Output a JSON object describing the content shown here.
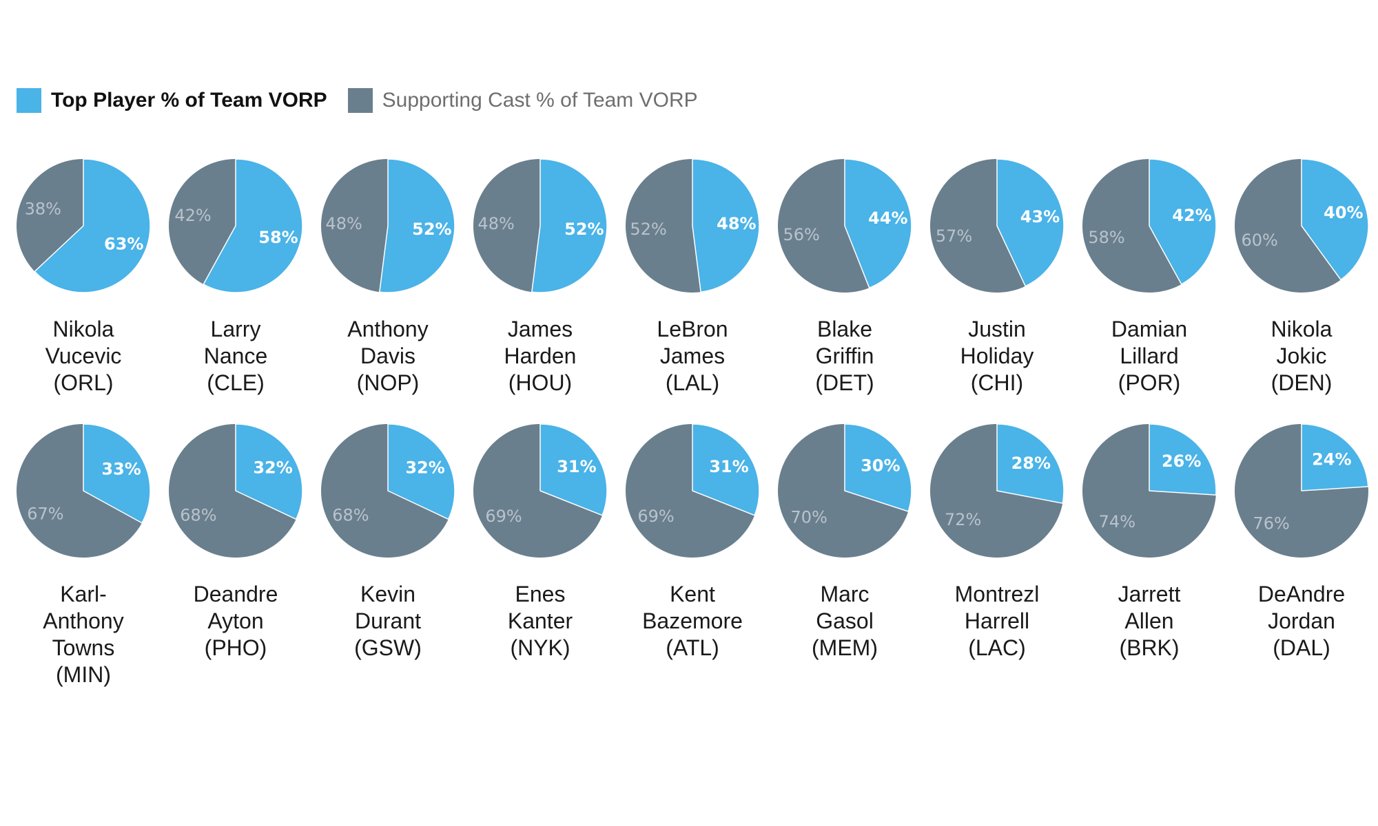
{
  "colors": {
    "top_player": "#4AB3E8",
    "supporting": "#6A7F8D",
    "divider": "#ffffff"
  },
  "legend": [
    {
      "label": "Top Player % of Team VORP",
      "color": "#4AB3E8",
      "style": "bold"
    },
    {
      "label": "Supporting Cast % of Team VORP",
      "color": "#6A7F8D",
      "style": "muted"
    }
  ],
  "chart_data": {
    "type": "pie",
    "series_names": [
      "Top Player % of Team VORP",
      "Supporting Cast % of Team VORP"
    ],
    "pies": [
      {
        "player": [
          "Nikola",
          "Vucevic",
          "(ORL)"
        ],
        "top": 63,
        "rest": 38
      },
      {
        "player": [
          "Larry",
          "Nance",
          "(CLE)"
        ],
        "top": 58,
        "rest": 42
      },
      {
        "player": [
          "Anthony",
          "Davis",
          "(NOP)"
        ],
        "top": 52,
        "rest": 48
      },
      {
        "player": [
          "James",
          "Harden",
          "(HOU)"
        ],
        "top": 52,
        "rest": 48
      },
      {
        "player": [
          "LeBron",
          "James",
          "(LAL)"
        ],
        "top": 48,
        "rest": 52
      },
      {
        "player": [
          "Blake",
          "Griffin",
          "(DET)"
        ],
        "top": 44,
        "rest": 56
      },
      {
        "player": [
          "Justin",
          "Holiday",
          "(CHI)"
        ],
        "top": 43,
        "rest": 57
      },
      {
        "player": [
          "Damian",
          "Lillard",
          "(POR)"
        ],
        "top": 42,
        "rest": 58
      },
      {
        "player": [
          "Nikola",
          "Jokic",
          "(DEN)"
        ],
        "top": 40,
        "rest": 60
      },
      {
        "player": [
          "Karl-",
          "Anthony",
          "Towns",
          "(MIN)"
        ],
        "top": 33,
        "rest": 67
      },
      {
        "player": [
          "Deandre",
          "Ayton",
          "(PHO)"
        ],
        "top": 32,
        "rest": 68
      },
      {
        "player": [
          "Kevin",
          "Durant",
          "(GSW)"
        ],
        "top": 32,
        "rest": 68
      },
      {
        "player": [
          "Enes",
          "Kanter",
          "(NYK)"
        ],
        "top": 31,
        "rest": 69
      },
      {
        "player": [
          "Kent",
          "Bazemore",
          "(ATL)"
        ],
        "top": 31,
        "rest": 69
      },
      {
        "player": [
          "Marc",
          "Gasol",
          "(MEM)"
        ],
        "top": 30,
        "rest": 70
      },
      {
        "player": [
          "Montrezl",
          "Harrell",
          "(LAC)"
        ],
        "top": 28,
        "rest": 72
      },
      {
        "player": [
          "Jarrett",
          "Allen",
          "(BRK)"
        ],
        "top": 26,
        "rest": 74
      },
      {
        "player": [
          "DeAndre",
          "Jordan",
          "(DAL)"
        ],
        "top": 24,
        "rest": 76
      }
    ]
  }
}
